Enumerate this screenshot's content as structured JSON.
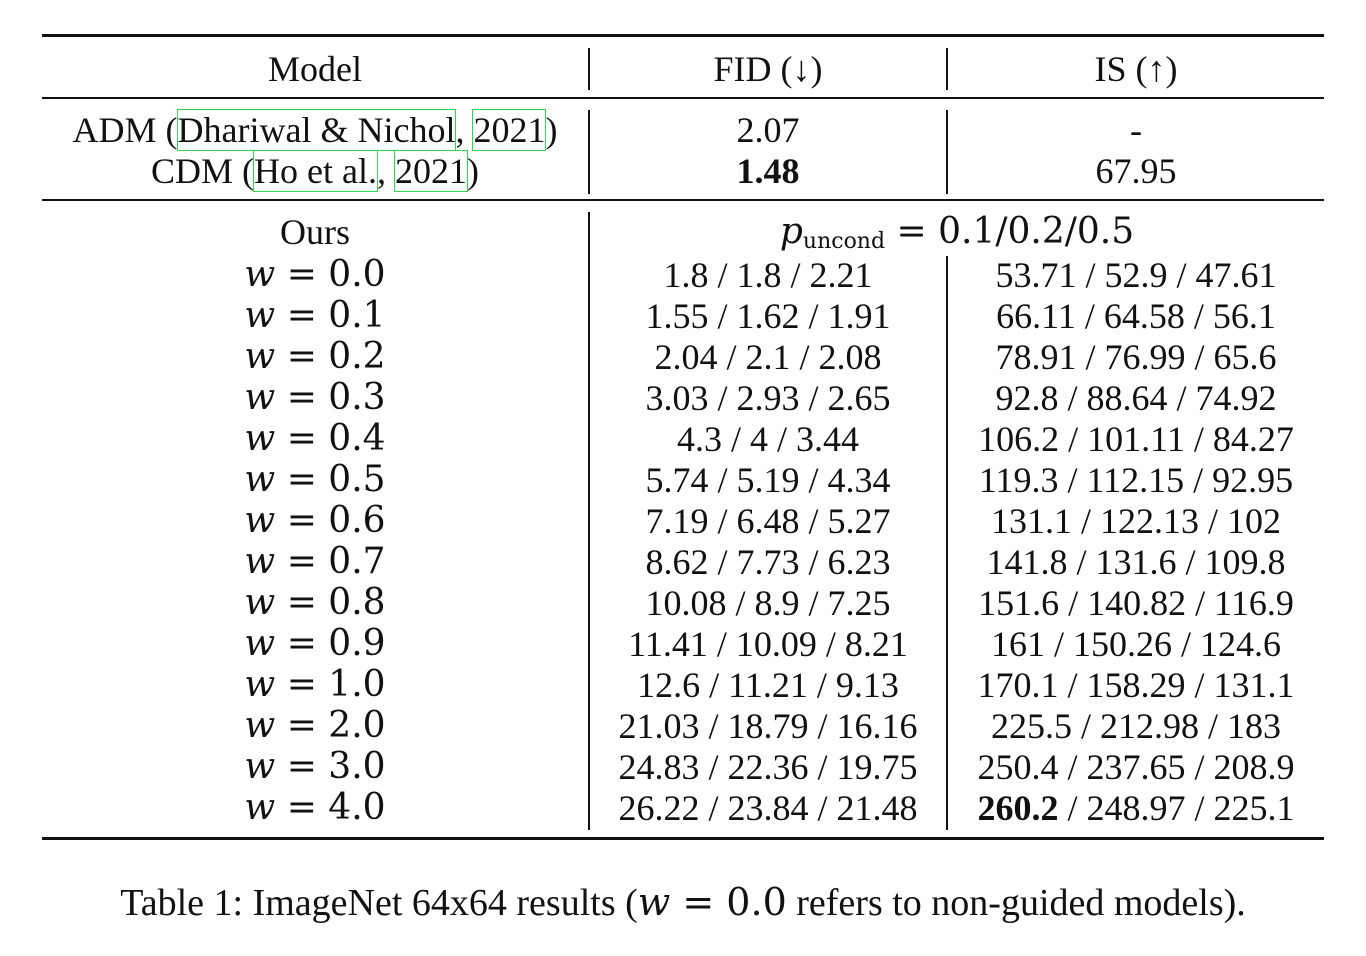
{
  "table": {
    "headers": {
      "model": "Model",
      "fid": "FID (↓)",
      "is": "IS (↑)"
    },
    "baselines": [
      {
        "name": "ADM",
        "cite_authors": "Dhariwal & Nichol",
        "cite_year": "2021",
        "fid": "2.07",
        "is": "-"
      },
      {
        "name": "CDM",
        "cite_authors": "Ho et al.",
        "cite_year": "2021",
        "fid": "1.48",
        "is": "67.95"
      }
    ],
    "ours": {
      "label": "Ours",
      "puncond_symbol": "p",
      "puncond_subscript": "uncond",
      "puncond_values": "= 0.1/0.2/0.5",
      "rows": [
        {
          "w": "w = 0.0",
          "fid": "1.8 / 1.8 / 2.21",
          "is": "53.71 / 52.9 / 47.61"
        },
        {
          "w": "w = 0.1",
          "fid": "1.55 / 1.62 / 1.91",
          "is": "66.11 / 64.58 / 56.1"
        },
        {
          "w": "w = 0.2",
          "fid": "2.04 / 2.1 / 2.08",
          "is": "78.91 / 76.99 / 65.6"
        },
        {
          "w": "w = 0.3",
          "fid": "3.03 / 2.93 / 2.65",
          "is": "92.8 / 88.64 / 74.92"
        },
        {
          "w": "w = 0.4",
          "fid": "4.3 / 4 / 3.44",
          "is": "106.2 / 101.11 / 84.27"
        },
        {
          "w": "w = 0.5",
          "fid": "5.74 / 5.19 / 4.34",
          "is": "119.3 / 112.15 / 92.95"
        },
        {
          "w": "w = 0.6",
          "fid": "7.19 / 6.48 / 5.27",
          "is": "131.1 / 122.13 / 102"
        },
        {
          "w": "w = 0.7",
          "fid": "8.62 / 7.73 / 6.23",
          "is": "141.8 / 131.6 / 109.8"
        },
        {
          "w": "w = 0.8",
          "fid": "10.08 / 8.9 / 7.25",
          "is": "151.6 / 140.82 / 116.9"
        },
        {
          "w": "w = 0.9",
          "fid": "11.41 / 10.09 / 8.21",
          "is": "161 / 150.26 / 124.6"
        },
        {
          "w": "w = 1.0",
          "fid": "12.6 / 11.21 / 9.13",
          "is": "170.1 / 158.29 / 131.1"
        },
        {
          "w": "w = 2.0",
          "fid": "21.03 / 18.79 / 16.16",
          "is": "225.5 / 212.98 / 183"
        },
        {
          "w": "w = 3.0",
          "fid": "24.83 / 22.36 / 19.75",
          "is": "250.4 / 237.65 / 208.9"
        },
        {
          "w": "w = 4.0",
          "fid": "26.22 / 23.84 / 21.48",
          "is_bold": "260.2",
          "is_rest": " / 248.97 / 225.1"
        }
      ]
    }
  },
  "caption": {
    "prefix": "Table 1: ImageNet 64x64 results (",
    "math": "w = 0.0",
    "suffix": " refers to non-guided models)."
  }
}
